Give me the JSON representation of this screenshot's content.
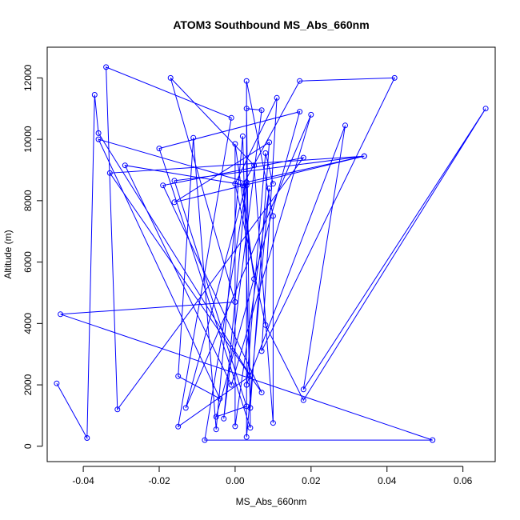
{
  "chart_data": {
    "type": "line",
    "title": "ATOM3 Southbound MS_Abs_660nm",
    "xlabel": "MS_Abs_660nm",
    "ylabel": "Altitude (m)",
    "xlim": [
      -0.0495,
      0.0685
    ],
    "ylim": [
      -500,
      13000
    ],
    "xticks": [
      -0.04,
      -0.02,
      0.0,
      0.02,
      0.04,
      0.06
    ],
    "xtick_labels": [
      "-0.04",
      "-0.02",
      "0.00",
      "0.02",
      "0.04",
      "0.06"
    ],
    "yticks": [
      0,
      2000,
      4000,
      6000,
      8000,
      10000,
      12000
    ],
    "ytick_labels": [
      "0",
      "2000",
      "4000",
      "6000",
      "8000",
      "10000",
      "12000"
    ],
    "grid": false,
    "line_color": "#0000ff",
    "marker": "open-circle",
    "series": [
      {
        "points": [
          [
            -0.047,
            2050
          ],
          [
            -0.039,
            270
          ],
          [
            -0.037,
            11450
          ],
          [
            -0.036,
            10200
          ],
          [
            0.004,
            2300
          ],
          [
            -0.015,
            640
          ],
          [
            -0.001,
            10700
          ],
          [
            -0.034,
            12350
          ],
          [
            -0.031,
            1200
          ],
          [
            0.018,
            9400
          ],
          [
            -0.019,
            8500
          ],
          [
            0.007,
            1750
          ],
          [
            -0.033,
            8900
          ],
          [
            0.034,
            9450
          ],
          [
            -0.016,
            8650
          ],
          [
            0.003,
            1300
          ],
          [
            -0.005,
            960
          ],
          [
            0.017,
            10900
          ],
          [
            -0.02,
            9700
          ],
          [
            0.004,
            600
          ],
          [
            0.003,
            11000
          ],
          [
            0.007,
            10950
          ],
          [
            -0.003,
            900
          ],
          [
            0.003,
            8600
          ],
          [
            -0.036,
            10000
          ],
          [
            -0.004,
            1550
          ],
          [
            -0.015,
            2280
          ],
          [
            -0.011,
            10050
          ],
          [
            -0.005,
            550
          ],
          [
            0.002,
            10100
          ],
          [
            0.004,
            1250
          ],
          [
            0.009,
            9900
          ],
          [
            -0.016,
            7950
          ],
          [
            0.034,
            9450
          ],
          [
            0.003,
            8600
          ],
          [
            -0.013,
            1250
          ],
          [
            0.02,
            10800
          ],
          [
            -0.001,
            2000
          ],
          [
            -0.029,
            9150
          ],
          [
            0.003,
            8500
          ],
          [
            -0.008,
            200
          ],
          [
            0.052,
            200
          ],
          [
            -0.046,
            4300
          ],
          [
            0.0,
            4700
          ],
          [
            -0.017,
            12000
          ],
          [
            0.005,
            9150
          ],
          [
            0.01,
            760
          ],
          [
            0.01,
            7500
          ],
          [
            0.003,
            11900
          ],
          [
            0.003,
            300
          ],
          [
            0.009,
            8400
          ],
          [
            0.0,
            650
          ],
          [
            0.0,
            9850
          ],
          [
            0.005,
            5450
          ],
          [
            0.002,
            8500
          ],
          [
            0.017,
            11900
          ],
          [
            0.042,
            12000
          ],
          [
            0.007,
            3100
          ],
          [
            0.011,
            11350
          ],
          [
            0.0,
            8550
          ],
          [
            0.008,
            3950
          ],
          [
            0.018,
            1500
          ],
          [
            0.066,
            11000
          ],
          [
            0.018,
            1850
          ],
          [
            0.029,
            10450
          ],
          [
            0.003,
            2000
          ],
          [
            0.008,
            9550
          ],
          [
            0.01,
            8550
          ]
        ]
      }
    ]
  }
}
